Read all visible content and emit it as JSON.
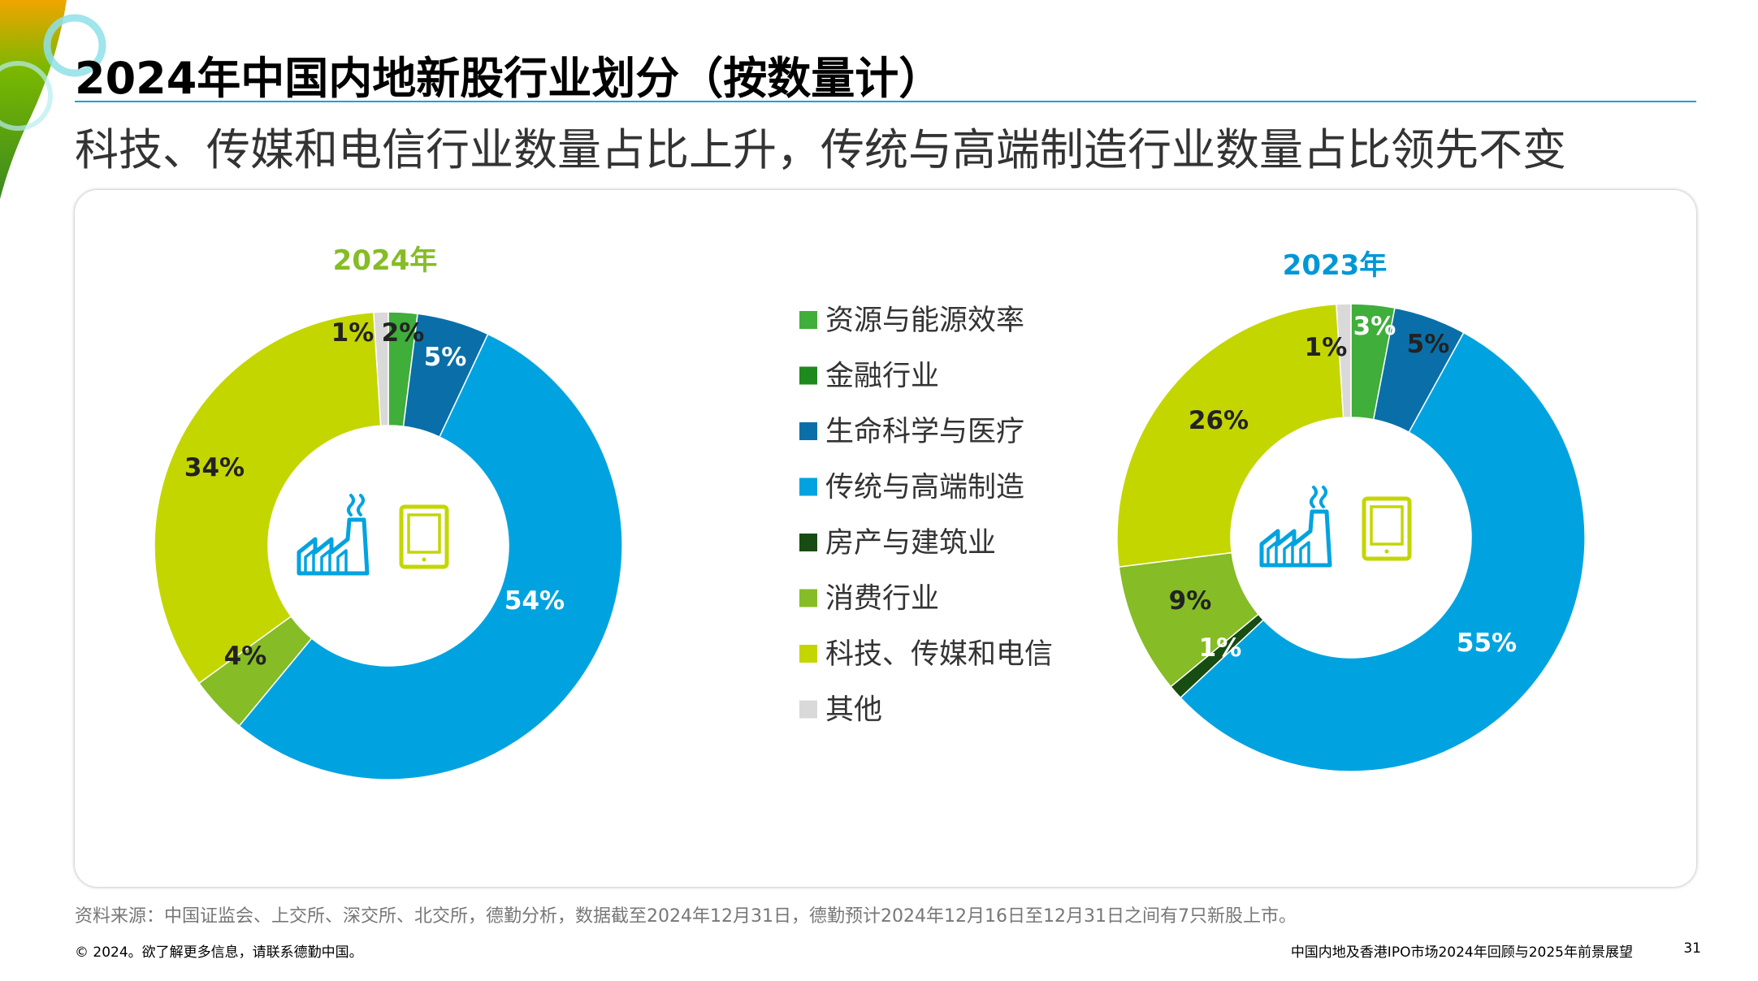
{
  "header": {
    "title": "2024年中国内地新股行业划分（按数量计）",
    "subtitle": "科技、传媒和电信行业数量占比上升，传统与高端制造行业数量占比领先不变"
  },
  "footer": {
    "source": "资料来源：中国证监会、上交所、深交所、北交所，德勤分析，数据截至2024年12月31日，德勤预计2024年12月16日至12月31日之间有7只新股上市。",
    "copyright": "© 2024。欲了解更多信息，请联系德勤中国。",
    "report_name": "中国内地及香港IPO市场2024年回顾与2025年前景展望",
    "page_number": "31"
  },
  "colors": {
    "resources": "#3fae3a",
    "finance": "#1e8a1e",
    "life_science": "#0a6fa8",
    "manufacturing": "#00a3e0",
    "real_estate": "#174d12",
    "consumer": "#86bc25",
    "tmt": "#c4d600",
    "other": "#d9d9d9",
    "year_2024": "#86bc25",
    "year_2023": "#0097d6",
    "icon_factory": "#00a3e0",
    "icon_tablet": "#c4d600"
  },
  "icons": [
    "factory-icon",
    "tablet-icon"
  ],
  "chart_data": [
    {
      "type": "pie",
      "donut": true,
      "title": "2024年",
      "categories": [
        "资源与能源效率",
        "金融行业",
        "生命科学与医疗",
        "传统与高端制造",
        "房产与建筑业",
        "消费行业",
        "科技、传媒和电信",
        "其他"
      ],
      "values": [
        2,
        0,
        5,
        54,
        0,
        4,
        34,
        1
      ],
      "labels": [
        "2%",
        "",
        "5%",
        "54%",
        "",
        "4%",
        "34%",
        "1%"
      ]
    },
    {
      "type": "pie",
      "donut": true,
      "title": "2023年",
      "categories": [
        "资源与能源效率",
        "金融行业",
        "生命科学与医疗",
        "传统与高端制造",
        "房产与建筑业",
        "消费行业",
        "科技、传媒和电信",
        "其他"
      ],
      "values": [
        3,
        0,
        5,
        55,
        1,
        9,
        26,
        1
      ],
      "labels": [
        "3%",
        "",
        "5%",
        "55%",
        "1%",
        "9%",
        "26%",
        "1%"
      ]
    }
  ],
  "legend": {
    "placement": "center",
    "items": [
      "资源与能源效率",
      "金融行业",
      "生命科学与医疗",
      "传统与高端制造",
      "房产与建筑业",
      "消费行业",
      "科技、传媒和电信",
      "其他"
    ]
  }
}
